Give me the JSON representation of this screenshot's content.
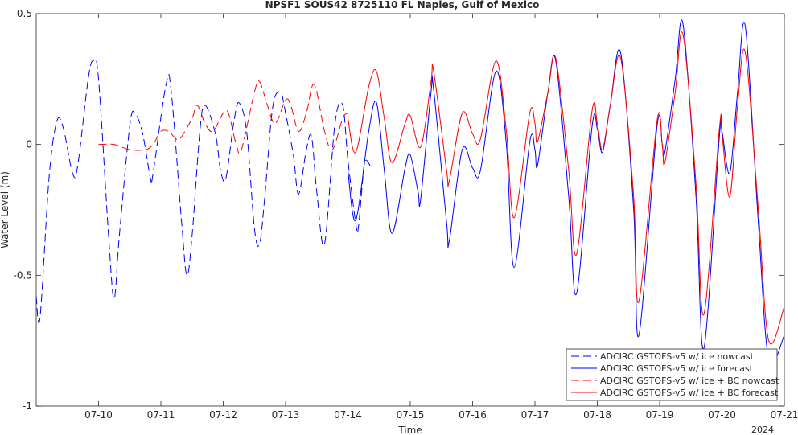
{
  "chart_data": {
    "type": "line",
    "title": "NPSF1 SOUS42 8725110 FL Naples, Gulf of Mexico",
    "xlabel": "Time",
    "ylabel": "Water Level (m)",
    "year_label": "2024",
    "xlim": [
      "2024-07-09 00:00",
      "2024-07-21 00:00"
    ],
    "ylim": [
      -1,
      0.5
    ],
    "x_ticks": [
      "07-10",
      "07-11",
      "07-12",
      "07-13",
      "07-14",
      "07-15",
      "07-16",
      "07-17",
      "07-18",
      "07-19",
      "07-20",
      "07-21"
    ],
    "y_ticks": [
      "-1",
      "-0.5",
      "0",
      "0.5"
    ],
    "nowcast_forecast_divider": "2024-07-14 00:00",
    "legend_position": "bottom-right",
    "series": [
      {
        "name": "ADCIRC GSTOFS-v5 w/ ice nowcast",
        "color": "#0000ff",
        "dash": true,
        "points": [
          [
            "2024-07-09 00:00",
            -0.58
          ],
          [
            "2024-07-09 01:30",
            -0.66
          ],
          [
            "2024-07-09 05:00",
            -0.12
          ],
          [
            "2024-07-09 08:00",
            0.09
          ],
          [
            "2024-07-09 10:30",
            0.06
          ],
          [
            "2024-07-09 14:00",
            -0.11
          ],
          [
            "2024-07-09 16:00",
            -0.08
          ],
          [
            "2024-07-09 20:00",
            0.25
          ],
          [
            "2024-07-09 22:00",
            0.32
          ],
          [
            "2024-07-10 00:00",
            0.25
          ],
          [
            "2024-07-10 04:00",
            -0.37
          ],
          [
            "2024-07-10 06:00",
            -0.59
          ],
          [
            "2024-07-10 08:00",
            -0.35
          ],
          [
            "2024-07-10 12:00",
            0.07
          ],
          [
            "2024-07-10 14:00",
            0.12
          ],
          [
            "2024-07-10 17:00",
            0.04
          ],
          [
            "2024-07-10 20:00",
            -0.13
          ],
          [
            "2024-07-10 21:00",
            -0.11
          ],
          [
            "2024-07-11 02:00",
            0.23
          ],
          [
            "2024-07-11 04:00",
            0.2
          ],
          [
            "2024-07-11 08:00",
            -0.3
          ],
          [
            "2024-07-11 10:00",
            -0.5
          ],
          [
            "2024-07-11 12:00",
            -0.35
          ],
          [
            "2024-07-11 15:00",
            0.05
          ],
          [
            "2024-07-11 17:00",
            0.15
          ],
          [
            "2024-07-11 21:00",
            0.04
          ],
          [
            "2024-07-11 23:00",
            -0.1
          ],
          [
            "2024-07-12 01:00",
            -0.13
          ],
          [
            "2024-07-12 04:00",
            0.08
          ],
          [
            "2024-07-12 06:00",
            0.16
          ],
          [
            "2024-07-12 09:00",
            0.05
          ],
          [
            "2024-07-12 12:00",
            -0.32
          ],
          [
            "2024-07-12 14:00",
            -0.38
          ],
          [
            "2024-07-12 16:00",
            -0.2
          ],
          [
            "2024-07-12 19:00",
            0.14
          ],
          [
            "2024-07-12 22:00",
            0.2
          ],
          [
            "2024-07-13 00:00",
            0.12
          ],
          [
            "2024-07-13 03:00",
            -0.04
          ],
          [
            "2024-07-13 05:00",
            -0.19
          ],
          [
            "2024-07-13 08:00",
            -0.02
          ],
          [
            "2024-07-13 10:00",
            0.03
          ],
          [
            "2024-07-13 12:00",
            -0.18
          ],
          [
            "2024-07-13 15:00",
            -0.38
          ],
          [
            "2024-07-13 19:00",
            0.08
          ],
          [
            "2024-07-13 22:00",
            0.15
          ],
          [
            "2024-07-14 00:00",
            -0.06
          ],
          [
            "2024-07-14 03:00",
            -0.3
          ],
          [
            "2024-07-14 04:00",
            -0.32
          ],
          [
            "2024-07-14 06:00",
            -0.1
          ],
          [
            "2024-07-14 07:00",
            -0.06
          ],
          [
            "2024-07-14 09:00",
            -0.09
          ]
        ]
      },
      {
        "name": "ADCIRC GSTOFS-v5 w/ ice forecast",
        "color": "#0000ff",
        "dash": false,
        "points": [
          [
            "2024-07-14 00:00",
            -0.1
          ],
          [
            "2024-07-14 03:00",
            -0.29
          ],
          [
            "2024-07-14 08:00",
            0.05
          ],
          [
            "2024-07-14 11:00",
            0.16
          ],
          [
            "2024-07-14 14:00",
            -0.1
          ],
          [
            "2024-07-14 17:00",
            -0.34
          ],
          [
            "2024-07-14 22:00",
            -0.09
          ],
          [
            "2024-07-15 00:00",
            -0.04
          ],
          [
            "2024-07-15 03:00",
            -0.18
          ],
          [
            "2024-07-15 04:00",
            -0.21
          ],
          [
            "2024-07-15 08:00",
            0.2
          ],
          [
            "2024-07-15 09:00",
            0.21
          ],
          [
            "2024-07-15 14:00",
            -0.3
          ],
          [
            "2024-07-15 15:00",
            -0.37
          ],
          [
            "2024-07-15 20:00",
            -0.02
          ],
          [
            "2024-07-16 00:00",
            -0.09
          ],
          [
            "2024-07-16 03:00",
            -0.1
          ],
          [
            "2024-07-16 09:00",
            0.28
          ],
          [
            "2024-07-16 13:00",
            0.0
          ],
          [
            "2024-07-16 16:00",
            -0.47
          ],
          [
            "2024-07-16 22:00",
            0.01
          ],
          [
            "2024-07-17 00:00",
            -0.02
          ],
          [
            "2024-07-17 01:00",
            -0.08
          ],
          [
            "2024-07-17 05:00",
            0.2
          ],
          [
            "2024-07-17 08:00",
            0.32
          ],
          [
            "2024-07-17 13:00",
            -0.2
          ],
          [
            "2024-07-17 16:00",
            -0.57
          ],
          [
            "2024-07-17 22:00",
            0.07
          ],
          [
            "2024-07-18 00:00",
            0.06
          ],
          [
            "2024-07-18 02:00",
            -0.03
          ],
          [
            "2024-07-18 05:00",
            0.15
          ],
          [
            "2024-07-18 09:00",
            0.35
          ],
          [
            "2024-07-18 14:00",
            -0.25
          ],
          [
            "2024-07-18 16:00",
            -0.73
          ],
          [
            "2024-07-18 23:00",
            0.07
          ],
          [
            "2024-07-19 01:00",
            0.0
          ],
          [
            "2024-07-19 02:00",
            -0.03
          ],
          [
            "2024-07-19 06:00",
            0.25
          ],
          [
            "2024-07-19 09:00",
            0.46
          ],
          [
            "2024-07-19 14:00",
            -0.2
          ],
          [
            "2024-07-19 17:00",
            -0.78
          ],
          [
            "2024-07-19 23:00",
            0.03
          ],
          [
            "2024-07-20 00:00",
            0.05
          ],
          [
            "2024-07-20 03:00",
            -0.11
          ],
          [
            "2024-07-20 06:00",
            0.2
          ],
          [
            "2024-07-20 09:00",
            0.45
          ],
          [
            "2024-07-20 14:00",
            -0.3
          ],
          [
            "2024-07-20 18:00",
            -0.82
          ],
          [
            "2024-07-21 00:00",
            -0.73
          ]
        ]
      },
      {
        "name": "ADCIRC GSTOFS-v5 w/ ice + BC nowcast",
        "color": "#ff0000",
        "dash": true,
        "points": [
          [
            "2024-07-10 00:00",
            0.0
          ],
          [
            "2024-07-10 06:00",
            0.0
          ],
          [
            "2024-07-10 12:00",
            -0.02
          ],
          [
            "2024-07-10 18:00",
            -0.02
          ],
          [
            "2024-07-10 21:00",
            0.0
          ],
          [
            "2024-07-11 00:00",
            0.05
          ],
          [
            "2024-07-11 03:00",
            0.05
          ],
          [
            "2024-07-11 06:00",
            0.02
          ],
          [
            "2024-07-11 08:00",
            0.03
          ],
          [
            "2024-07-11 12:00",
            0.1
          ],
          [
            "2024-07-11 14:00",
            0.15
          ],
          [
            "2024-07-11 17:00",
            0.08
          ],
          [
            "2024-07-11 20:00",
            0.05
          ],
          [
            "2024-07-12 00:00",
            0.12
          ],
          [
            "2024-07-12 02:00",
            0.12
          ],
          [
            "2024-07-12 05:00",
            0.0
          ],
          [
            "2024-07-12 07:00",
            -0.02
          ],
          [
            "2024-07-12 12:00",
            0.2
          ],
          [
            "2024-07-12 14:00",
            0.24
          ],
          [
            "2024-07-12 17:00",
            0.15
          ],
          [
            "2024-07-12 20:00",
            0.08
          ],
          [
            "2024-07-13 00:00",
            0.17
          ],
          [
            "2024-07-13 02:00",
            0.15
          ],
          [
            "2024-07-13 05:00",
            0.05
          ],
          [
            "2024-07-13 08:00",
            0.12
          ],
          [
            "2024-07-13 11:00",
            0.23
          ],
          [
            "2024-07-13 15:00",
            0.05
          ],
          [
            "2024-07-13 18:00",
            -0.02
          ],
          [
            "2024-07-13 22:00",
            0.1
          ],
          [
            "2024-07-14 00:00",
            0.12
          ]
        ]
      },
      {
        "name": "ADCIRC GSTOFS-v5 w/ ice + BC forecast",
        "color": "#ff0000",
        "dash": false,
        "points": [
          [
            "2024-07-14 00:00",
            0.1
          ],
          [
            "2024-07-14 03:00",
            -0.03
          ],
          [
            "2024-07-14 08:00",
            0.22
          ],
          [
            "2024-07-14 11:00",
            0.28
          ],
          [
            "2024-07-14 14:00",
            0.1
          ],
          [
            "2024-07-14 17:00",
            -0.07
          ],
          [
            "2024-07-14 22:00",
            0.08
          ],
          [
            "2024-07-15 00:00",
            0.11
          ],
          [
            "2024-07-15 04:00",
            -0.01
          ],
          [
            "2024-07-15 08:00",
            0.24
          ],
          [
            "2024-07-15 09:00",
            0.28
          ],
          [
            "2024-07-15 14:00",
            -0.1
          ],
          [
            "2024-07-15 15:00",
            -0.14
          ],
          [
            "2024-07-15 20:00",
            0.12
          ],
          [
            "2024-07-16 00:00",
            0.04
          ],
          [
            "2024-07-16 03:00",
            0.02
          ],
          [
            "2024-07-16 09:00",
            0.32
          ],
          [
            "2024-07-16 13:00",
            0.05
          ],
          [
            "2024-07-16 16:00",
            -0.28
          ],
          [
            "2024-07-16 22:00",
            0.12
          ],
          [
            "2024-07-17 00:00",
            0.08
          ],
          [
            "2024-07-17 01:00",
            0.01
          ],
          [
            "2024-07-17 05:00",
            0.2
          ],
          [
            "2024-07-17 08:00",
            0.33
          ],
          [
            "2024-07-17 13:00",
            -0.1
          ],
          [
            "2024-07-17 16:00",
            -0.42
          ],
          [
            "2024-07-17 22:00",
            0.13
          ],
          [
            "2024-07-18 00:00",
            0.08
          ],
          [
            "2024-07-18 02:00",
            -0.02
          ],
          [
            "2024-07-18 05:00",
            0.15
          ],
          [
            "2024-07-18 09:00",
            0.33
          ],
          [
            "2024-07-18 14:00",
            -0.2
          ],
          [
            "2024-07-18 16:00",
            -0.6
          ],
          [
            "2024-07-18 23:00",
            0.09
          ],
          [
            "2024-07-19 01:00",
            0.0
          ],
          [
            "2024-07-19 02:00",
            -0.07
          ],
          [
            "2024-07-19 06:00",
            0.2
          ],
          [
            "2024-07-19 09:00",
            0.42
          ],
          [
            "2024-07-19 14:00",
            -0.15
          ],
          [
            "2024-07-19 17:00",
            -0.65
          ],
          [
            "2024-07-19 23:00",
            0.06
          ],
          [
            "2024-07-20 00:00",
            0.04
          ],
          [
            "2024-07-20 03:00",
            -0.2
          ],
          [
            "2024-07-20 06:00",
            0.15
          ],
          [
            "2024-07-20 09:00",
            0.35
          ],
          [
            "2024-07-20 14:00",
            -0.25
          ],
          [
            "2024-07-20 18:00",
            -0.75
          ],
          [
            "2024-07-21 00:00",
            -0.62
          ]
        ]
      }
    ]
  }
}
